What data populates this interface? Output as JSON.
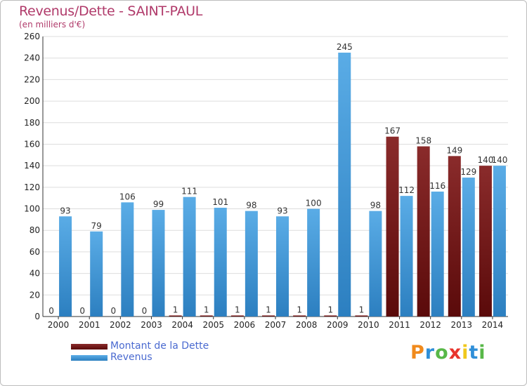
{
  "header": {
    "title": "Revenus/Dette - SAINT-PAUL",
    "subtitle": "(en milliers d'€)"
  },
  "colors": {
    "title": "#b03a6a",
    "dette_light": "#8a2b2b",
    "dette_dark": "#5a0a0a",
    "revenus_light": "#5aace6",
    "revenus_dark": "#2c7fc0",
    "legend_text": "#4a6ad0",
    "grid": "#dddddd"
  },
  "chart_data": {
    "type": "bar",
    "title": "Revenus/Dette - SAINT-PAUL",
    "subtitle": "(en milliers d'€)",
    "xlabel": "",
    "ylabel": "",
    "ylim": [
      0,
      260
    ],
    "yticks": [
      0,
      20,
      40,
      60,
      80,
      100,
      120,
      140,
      160,
      180,
      200,
      220,
      240,
      260
    ],
    "grid": true,
    "legend_position": "bottom-left",
    "categories": [
      "2000",
      "2001",
      "2002",
      "2003",
      "2004",
      "2005",
      "2006",
      "2007",
      "2008",
      "2009",
      "2010",
      "2011",
      "2012",
      "2013",
      "2014"
    ],
    "series": [
      {
        "name": "Montant de la Dette",
        "values": [
          0,
          0,
          0,
          0,
          1,
          1,
          1,
          1,
          1,
          1,
          1,
          167,
          158,
          149,
          140
        ]
      },
      {
        "name": "Revenus",
        "values": [
          93,
          79,
          106,
          99,
          111,
          101,
          98,
          93,
          100,
          245,
          98,
          112,
          116,
          129,
          140
        ]
      }
    ]
  },
  "legend": {
    "items": [
      {
        "label": "Montant de la Dette"
      },
      {
        "label": "Revenus"
      }
    ]
  },
  "logo": {
    "letters": [
      "P",
      "r",
      "o",
      "x",
      "i",
      "t",
      "i"
    ],
    "letter_colors": [
      "#f08a1c",
      "#2f8fd8",
      "#58b848",
      "#e8342c",
      "#f0c81c",
      "#2f8fd8",
      "#58b848"
    ]
  }
}
